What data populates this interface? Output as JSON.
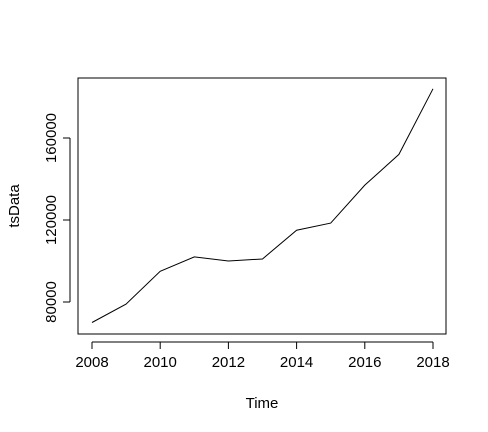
{
  "chart_data": {
    "type": "line",
    "title": "",
    "xlabel": "Time",
    "ylabel": "tsData",
    "x": [
      2008,
      2009,
      2010,
      2011,
      2012,
      2013,
      2014,
      2015,
      2016,
      2017,
      2018
    ],
    "series": [
      {
        "values": [
          70000,
          79000,
          95000,
          102000,
          100000,
          101000,
          115000,
          118500,
          137000,
          152000,
          184000
        ]
      }
    ],
    "xlim": [
      2008,
      2018
    ],
    "ylim": [
      65000,
      188000
    ],
    "xticks": [
      2008,
      2010,
      2012,
      2014,
      2016,
      2018
    ],
    "xtick_labels": [
      "2008",
      "2010",
      "2012",
      "2014",
      "2016",
      "2018"
    ],
    "yticks": [
      80000,
      120000,
      160000
    ],
    "ytick_labels": [
      "80000",
      "120000",
      "160000"
    ],
    "grid": false,
    "legend": "none"
  }
}
